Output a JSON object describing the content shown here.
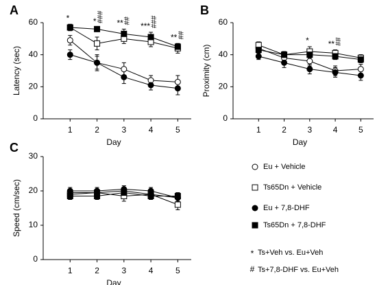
{
  "chart_data": [
    {
      "type": "line",
      "label": "A",
      "ylabel": "Latency (sec)",
      "xlabel": "Day",
      "x": [
        1,
        2,
        3,
        4,
        5
      ],
      "xlim": [
        0,
        5.5
      ],
      "xticks": [
        1,
        2,
        3,
        4,
        5
      ],
      "ylim": [
        0,
        60
      ],
      "yticks": [
        0,
        20,
        40,
        60
      ],
      "series": [
        {
          "name": "Eu + Vehicle",
          "marker": "open-circle",
          "color": "#000000",
          "values": [
            49,
            35,
            31,
            24,
            23
          ],
          "errors": [
            3,
            4,
            4,
            3,
            4
          ]
        },
        {
          "name": "Ts65Dn + Vehicle",
          "marker": "open-square",
          "color": "#000000",
          "values": [
            57,
            47,
            50,
            48,
            44
          ],
          "errors": [
            2,
            4,
            3,
            3,
            3
          ]
        },
        {
          "name": "Eu + 7,8-DHF",
          "marker": "filled-circle",
          "color": "#000000",
          "values": [
            40,
            35,
            26,
            21,
            19
          ],
          "errors": [
            3,
            5,
            4,
            3,
            4
          ]
        },
        {
          "name": "Ts65Dn + 7,8-DHF",
          "marker": "filled-square",
          "color": "#000000",
          "values": [
            57,
            56,
            53,
            51,
            45
          ],
          "errors": [
            2,
            1,
            3,
            3,
            2
          ]
        }
      ],
      "annotations": [
        {
          "day": 1,
          "text": "*"
        },
        {
          "day": 2,
          "text": "*"
        },
        {
          "day": 2,
          "text": "###"
        },
        {
          "day": 3,
          "text": "**"
        },
        {
          "day": 3,
          "text": "##"
        },
        {
          "day": 4,
          "text": "***"
        },
        {
          "day": 4,
          "text": "###"
        },
        {
          "day": 5,
          "text": "**"
        },
        {
          "day": 5,
          "text": "##"
        }
      ]
    },
    {
      "type": "line",
      "label": "B",
      "ylabel": "Proximity (cm)",
      "xlabel": "Day",
      "x": [
        1,
        2,
        3,
        4,
        5
      ],
      "xlim": [
        0,
        5.5
      ],
      "xticks": [
        1,
        2,
        3,
        4,
        5
      ],
      "ylim": [
        0,
        60
      ],
      "yticks": [
        0,
        20,
        40,
        60
      ],
      "series": [
        {
          "marker": "open-circle",
          "color": "#000000",
          "values": [
            44,
            38,
            36,
            30,
            31
          ],
          "errors": [
            2,
            3,
            3,
            3,
            3
          ]
        },
        {
          "marker": "open-square",
          "color": "#000000",
          "values": [
            46,
            40,
            42,
            41,
            38
          ],
          "errors": [
            2,
            2,
            3,
            2,
            2
          ]
        },
        {
          "marker": "filled-circle",
          "color": "#000000",
          "values": [
            39,
            35,
            31,
            29,
            27
          ],
          "errors": [
            2,
            3,
            3,
            3,
            3
          ]
        },
        {
          "marker": "filled-square",
          "color": "#000000",
          "values": [
            43,
            40,
            40,
            39,
            37
          ],
          "errors": [
            2,
            2,
            2,
            2,
            2
          ]
        }
      ],
      "annotations": [
        {
          "day": 3,
          "text": "*"
        },
        {
          "day": 4,
          "text": "**"
        },
        {
          "day": 4,
          "text": "##"
        }
      ]
    },
    {
      "type": "line",
      "label": "C",
      "ylabel": "Speed (cm/sec)",
      "xlabel": "Day",
      "x": [
        1,
        2,
        3,
        4,
        5
      ],
      "xlim": [
        0,
        5.5
      ],
      "xticks": [
        1,
        2,
        3,
        4,
        5
      ],
      "ylim": [
        0,
        30
      ],
      "yticks": [
        0,
        10,
        20,
        30
      ],
      "series": [
        {
          "marker": "open-circle",
          "color": "#000000",
          "values": [
            19.5,
            19.5,
            20,
            19,
            18
          ],
          "errors": [
            1,
            1,
            1,
            1,
            1.5
          ]
        },
        {
          "marker": "open-square",
          "color": "#000000",
          "values": [
            19,
            19.5,
            18.5,
            19,
            16
          ],
          "errors": [
            1,
            1,
            1.5,
            1,
            1.5
          ]
        },
        {
          "marker": "filled-circle",
          "color": "#000000",
          "values": [
            20,
            20,
            20.5,
            20,
            18
          ],
          "errors": [
            1,
            1,
            1,
            1,
            1
          ]
        },
        {
          "marker": "filled-square",
          "color": "#000000",
          "values": [
            18.5,
            18.5,
            19.5,
            18.5,
            18.5
          ],
          "errors": [
            1,
            1,
            1,
            1,
            1
          ]
        }
      ],
      "annotations": []
    }
  ],
  "notes": [
    {
      "symbol": "*",
      "text": "Ts+Veh vs. Eu+Veh"
    },
    {
      "symbol": "#",
      "text": "Ts+7,8-DHF vs. Eu+Veh"
    }
  ]
}
